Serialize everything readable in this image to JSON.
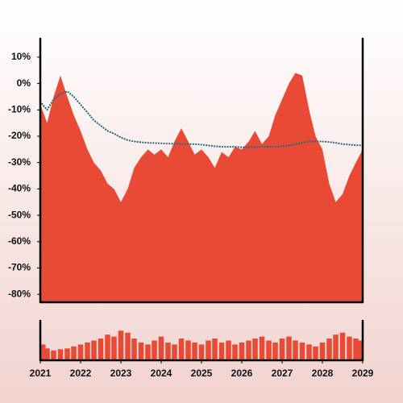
{
  "chart_data": [
    {
      "type": "area",
      "x": [
        2021.0,
        2021.17,
        2021.33,
        2021.5,
        2021.67,
        2021.83,
        2022.0,
        2022.17,
        2022.33,
        2022.5,
        2022.67,
        2022.83,
        2023.0,
        2023.17,
        2023.33,
        2023.5,
        2023.67,
        2023.83,
        2024.0,
        2024.17,
        2024.33,
        2024.5,
        2024.67,
        2024.83,
        2025.0,
        2025.17,
        2025.33,
        2025.5,
        2025.67,
        2025.83,
        2026.0,
        2026.17,
        2026.33,
        2026.5,
        2026.67,
        2026.83,
        2027.0,
        2027.17,
        2027.33,
        2027.5,
        2027.67,
        2027.83,
        2028.0,
        2028.17,
        2028.33,
        2028.5,
        2028.67,
        2028.83,
        2029.0
      ],
      "series": [
        {
          "type": "area",
          "color": "#e84a35",
          "values": [
            -8,
            -15,
            -5,
            3,
            -5,
            -12,
            -18,
            -25,
            -30,
            -33,
            -38,
            -40,
            -45,
            -40,
            -32,
            -28,
            -25,
            -27,
            -25,
            -28,
            -22,
            -17,
            -22,
            -27,
            -25,
            -28,
            -32,
            -26,
            -28,
            -24,
            -25,
            -22,
            -18,
            -23,
            -20,
            -12,
            -6,
            0,
            4,
            3,
            -10,
            -20,
            -25,
            -38,
            -45,
            -42,
            -35,
            -30,
            -25
          ]
        },
        {
          "type": "line",
          "color": "#2a6b7a",
          "values": [
            -7,
            -10,
            -6,
            -4,
            -3,
            -5,
            -8,
            -11,
            -14,
            -16,
            -18,
            -19,
            -20.5,
            -21.5,
            -22,
            -22.3,
            -22.5,
            -22.6,
            -22.7,
            -22.8,
            -22.9,
            -23,
            -23,
            -23,
            -23.2,
            -23.5,
            -23.8,
            -24,
            -24,
            -24,
            -24.2,
            -24.2,
            -24.2,
            -24,
            -24,
            -24,
            -23.8,
            -23.5,
            -23,
            -22.5,
            -22,
            -22,
            -22,
            -22.2,
            -22.5,
            -23,
            -23.2,
            -23.4,
            -23.5
          ]
        }
      ],
      "xlim": [
        2021,
        2029
      ],
      "ylim": [
        -83,
        17
      ],
      "yticks": [
        {
          "value": 10,
          "label": "10%"
        },
        {
          "value": 0,
          "label": "0%"
        },
        {
          "value": -10,
          "label": "-10%"
        },
        {
          "value": -20,
          "label": "-20%"
        },
        {
          "value": -30,
          "label": "-30%"
        },
        {
          "value": -40,
          "label": "-40%"
        },
        {
          "value": -50,
          "label": "-50%"
        },
        {
          "value": -60,
          "label": "-60%"
        },
        {
          "value": -70,
          "label": "-70%"
        },
        {
          "value": -80,
          "label": "-80%"
        }
      ]
    },
    {
      "type": "bar",
      "color": "#e84a35",
      "x": [
        2021.0,
        2021.17,
        2021.33,
        2021.5,
        2021.67,
        2021.83,
        2022.0,
        2022.17,
        2022.33,
        2022.5,
        2022.67,
        2022.83,
        2023.0,
        2023.17,
        2023.33,
        2023.5,
        2023.67,
        2023.83,
        2024.0,
        2024.17,
        2024.33,
        2024.5,
        2024.67,
        2024.83,
        2025.0,
        2025.17,
        2025.33,
        2025.5,
        2025.67,
        2025.83,
        2026.0,
        2026.17,
        2026.33,
        2026.5,
        2026.67,
        2026.83,
        2027.0,
        2027.17,
        2027.33,
        2027.5,
        2027.67,
        2027.83,
        2028.0,
        2028.17,
        2028.33,
        2028.5,
        2028.67,
        2028.83,
        2029.0
      ],
      "values": [
        40,
        30,
        25,
        28,
        30,
        35,
        40,
        45,
        50,
        55,
        65,
        60,
        75,
        70,
        55,
        45,
        40,
        50,
        60,
        45,
        40,
        55,
        50,
        45,
        40,
        50,
        55,
        45,
        50,
        40,
        45,
        50,
        55,
        60,
        50,
        45,
        55,
        60,
        50,
        45,
        40,
        35,
        45,
        55,
        65,
        70,
        60,
        55,
        50
      ],
      "xlim": [
        2021,
        2029
      ],
      "ylim": [
        0,
        100
      ],
      "xticks": [
        2021,
        2022,
        2023,
        2024,
        2025,
        2026,
        2027,
        2028,
        2029
      ]
    }
  ]
}
